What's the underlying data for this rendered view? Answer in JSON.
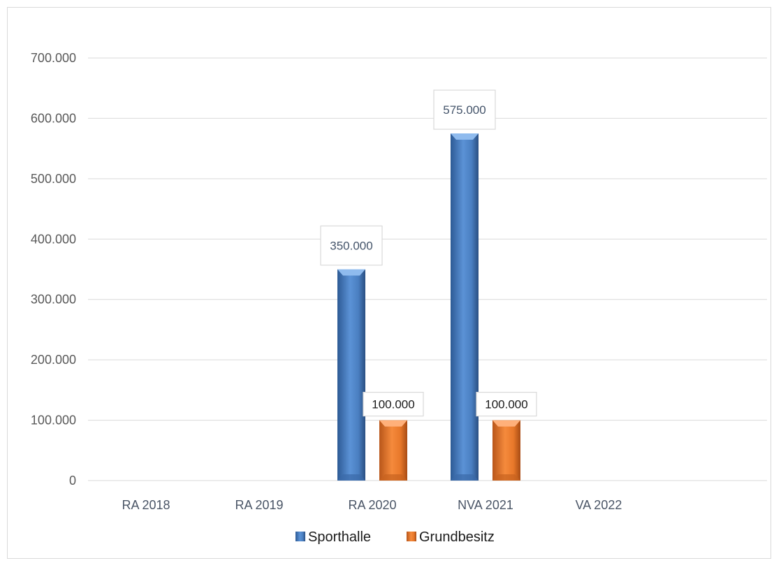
{
  "chart_data": {
    "type": "bar",
    "categories": [
      "RA 2018",
      "RA 2019",
      "RA 2020",
      "NVA 2021",
      "VA 2022"
    ],
    "series": [
      {
        "name": "Sporthalle",
        "values": [
          null,
          null,
          350000,
          575000,
          null
        ],
        "data_labels": [
          "",
          "",
          "350.000",
          "575.000",
          ""
        ],
        "color": "#4a7fc1"
      },
      {
        "name": "Grundbesitz",
        "values": [
          null,
          null,
          100000,
          100000,
          null
        ],
        "data_labels": [
          "",
          "",
          "100.000",
          "100.000",
          ""
        ],
        "color": "#e8782a"
      }
    ],
    "yticks": [
      "0",
      "100.000",
      "200.000",
      "300.000",
      "400.000",
      "500.000",
      "600.000",
      "700.000"
    ],
    "ylim": [
      0,
      700000
    ],
    "grid": true,
    "legend": "bottom",
    "title": "",
    "xlabel": "",
    "ylabel": ""
  }
}
